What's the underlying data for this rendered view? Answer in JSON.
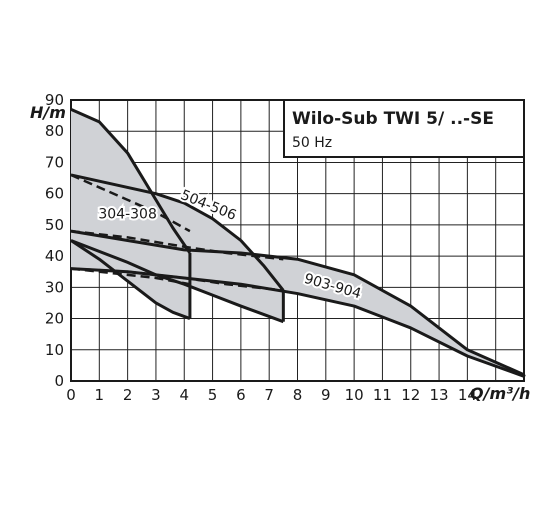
{
  "chart_data": {
    "type": "line",
    "title": "Wilo-Sub TWI 5/ ..-SE",
    "subtitle": "50 Hz",
    "xlabel": "Q/m³/h",
    "ylabel": "H/m",
    "xlim": [
      0,
      16
    ],
    "ylim": [
      0,
      90
    ],
    "xticks": [
      "0",
      "1",
      "2",
      "3",
      "4",
      "5",
      "6",
      "7",
      "8",
      "9",
      "10",
      "11",
      "12",
      "13",
      "14"
    ],
    "yticks": [
      "0",
      "10",
      "20",
      "30",
      "40",
      "50",
      "60",
      "70",
      "80",
      "90"
    ],
    "grid": true,
    "colors": {
      "line": "#1a1a1a",
      "fill": "#d0d2d6",
      "grid": "#222222"
    },
    "series": [
      {
        "name": "304-308",
        "label_at": [
          2.0,
          52
        ],
        "label_rotation": 0,
        "upper": [
          [
            0,
            87
          ],
          [
            1,
            83
          ],
          [
            2,
            73
          ],
          [
            3,
            58
          ],
          [
            3.6,
            49
          ],
          [
            4.2,
            41
          ]
        ],
        "lower": [
          [
            0,
            45
          ],
          [
            1,
            39
          ],
          [
            2,
            32
          ],
          [
            3,
            25
          ],
          [
            3.6,
            22
          ],
          [
            4.2,
            20
          ]
        ],
        "dashed": [
          [
            0,
            66
          ],
          [
            1,
            62
          ],
          [
            2,
            58
          ],
          [
            3,
            54
          ],
          [
            4.2,
            48
          ]
        ],
        "dashed_low": [
          [
            0,
            36
          ],
          [
            1,
            35
          ],
          [
            2,
            34
          ],
          [
            3,
            33
          ],
          [
            4.2,
            31
          ]
        ]
      },
      {
        "name": "504-506",
        "label_at": [
          4.8,
          55
        ],
        "label_rotation": 22,
        "upper": [
          [
            0,
            66
          ],
          [
            2,
            62
          ],
          [
            3,
            60
          ],
          [
            4,
            57
          ],
          [
            5,
            52
          ],
          [
            6,
            45
          ],
          [
            6.8,
            37
          ],
          [
            7.5,
            29
          ]
        ],
        "lower": [
          [
            0,
            45
          ],
          [
            2,
            38
          ],
          [
            3,
            34
          ],
          [
            4,
            31
          ],
          [
            5,
            27.5
          ],
          [
            6,
            24
          ],
          [
            7.5,
            19
          ]
        ],
        "dashed": [
          [
            0,
            48
          ],
          [
            2,
            46
          ],
          [
            4,
            43
          ],
          [
            5.5,
            41
          ],
          [
            7.5,
            39
          ]
        ],
        "dashed_low": [
          [
            0,
            36
          ],
          [
            2,
            35
          ],
          [
            4,
            33
          ],
          [
            5.5,
            31
          ],
          [
            7.5,
            29
          ]
        ]
      },
      {
        "name": "903-904",
        "label_at": [
          9.2,
          29
        ],
        "label_rotation": 16,
        "upper": [
          [
            0,
            48
          ],
          [
            2,
            45
          ],
          [
            4,
            42
          ],
          [
            6,
            41
          ],
          [
            8,
            39
          ],
          [
            10,
            34
          ],
          [
            12,
            24
          ],
          [
            14,
            10
          ],
          [
            16,
            2
          ]
        ],
        "lower": [
          [
            0,
            36
          ],
          [
            2,
            35
          ],
          [
            4,
            33
          ],
          [
            6,
            31
          ],
          [
            8,
            28
          ],
          [
            10,
            24
          ],
          [
            12,
            17
          ],
          [
            14,
            8
          ],
          [
            16,
            1.5
          ]
        ]
      }
    ]
  }
}
